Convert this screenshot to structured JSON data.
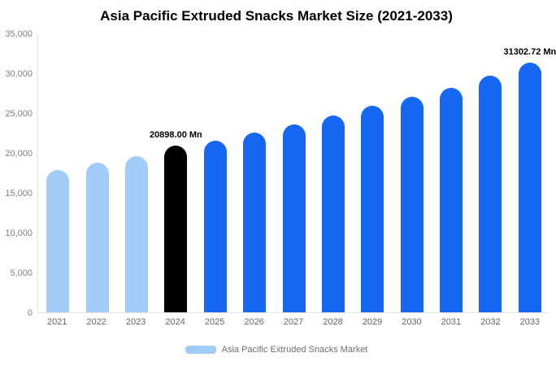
{
  "chart_data": {
    "type": "bar",
    "title": "Asia Pacific Extruded Snacks Market Size (2021-2033)",
    "categories": [
      "2021",
      "2022",
      "2023",
      "2024",
      "2025",
      "2026",
      "2027",
      "2028",
      "2029",
      "2030",
      "2031",
      "2032",
      "2033"
    ],
    "values": [
      17900,
      18800,
      19600,
      20898,
      21500,
      22500,
      23600,
      24700,
      25900,
      27000,
      28200,
      29700,
      31302.72
    ],
    "bar_colors": [
      "light",
      "light",
      "light",
      "black",
      "blue",
      "blue",
      "blue",
      "blue",
      "blue",
      "blue",
      "blue",
      "blue",
      "blue"
    ],
    "colors": {
      "light": "#A3CBF8",
      "black": "#000000",
      "blue": "#1667F2"
    },
    "ylim": [
      0,
      35000
    ],
    "yticks": [
      "35,000",
      "30,000",
      "25,000",
      "20,000",
      "15,000",
      "10,000",
      "5,000",
      "0"
    ],
    "grid": false,
    "annotations": [
      {
        "index": 3,
        "text": "20898.00 Mn"
      },
      {
        "index": 12,
        "text": "31302.72 Mn"
      }
    ],
    "legend": {
      "position": "bottom",
      "label": "Asia Pacific Extruded Snacks Market",
      "swatch_color": "#A3CBF8"
    }
  }
}
